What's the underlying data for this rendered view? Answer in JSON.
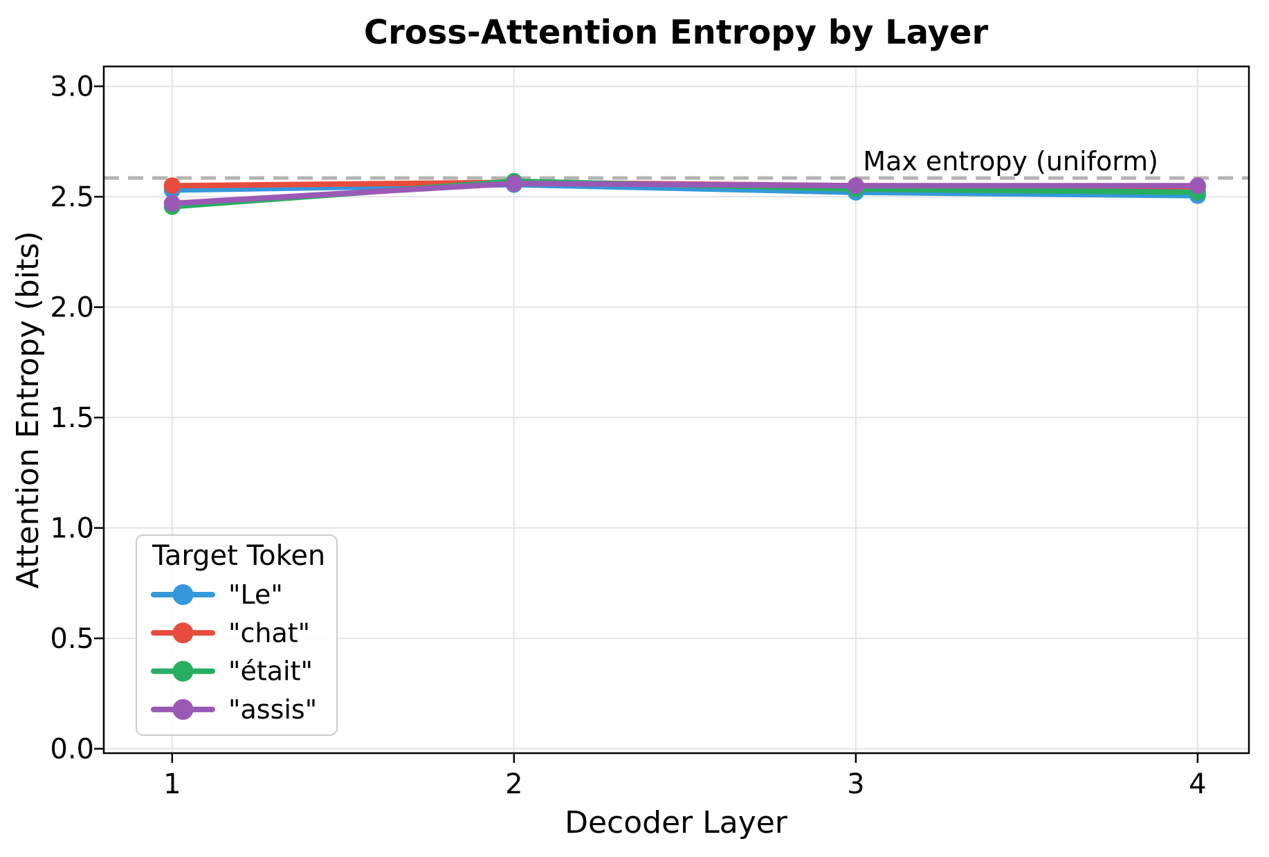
{
  "chart_data": {
    "type": "line",
    "title": "Cross-Attention Entropy by Layer",
    "xlabel": "Decoder Layer",
    "ylabel": "Attention Entropy (bits)",
    "x": [
      1,
      2,
      3,
      4
    ],
    "xticks": [
      "1",
      "2",
      "3",
      "4"
    ],
    "yticks": [
      0.0,
      0.5,
      1.0,
      1.5,
      2.0,
      2.5,
      3.0
    ],
    "xlim": [
      0.8,
      4.15
    ],
    "ylim": [
      -0.02,
      3.09
    ],
    "grid": true,
    "series": [
      {
        "name": "\"Le\"",
        "color": "#3498db",
        "values": [
          2.53,
          2.555,
          2.52,
          2.505
        ]
      },
      {
        "name": "\"chat\"",
        "color": "#e74c3c",
        "values": [
          2.55,
          2.565,
          2.55,
          2.545
        ]
      },
      {
        "name": "\"était\"",
        "color": "#27ae60",
        "values": [
          2.455,
          2.57,
          2.535,
          2.52
        ]
      },
      {
        "name": "\"assis\"",
        "color": "#9b59b6",
        "values": [
          2.47,
          2.56,
          2.55,
          2.55
        ]
      }
    ],
    "reference_line": {
      "value": 2.585,
      "label": "Max entropy (uniform)",
      "color": "#b3b3b3",
      "label_color": "#8e8e8e",
      "style": "dashed"
    },
    "legend": {
      "title": "Target Token",
      "position": "lower left"
    },
    "colors": {
      "grid": "#e3e3e3",
      "spine": "#000000",
      "background": "#ffffff"
    }
  }
}
